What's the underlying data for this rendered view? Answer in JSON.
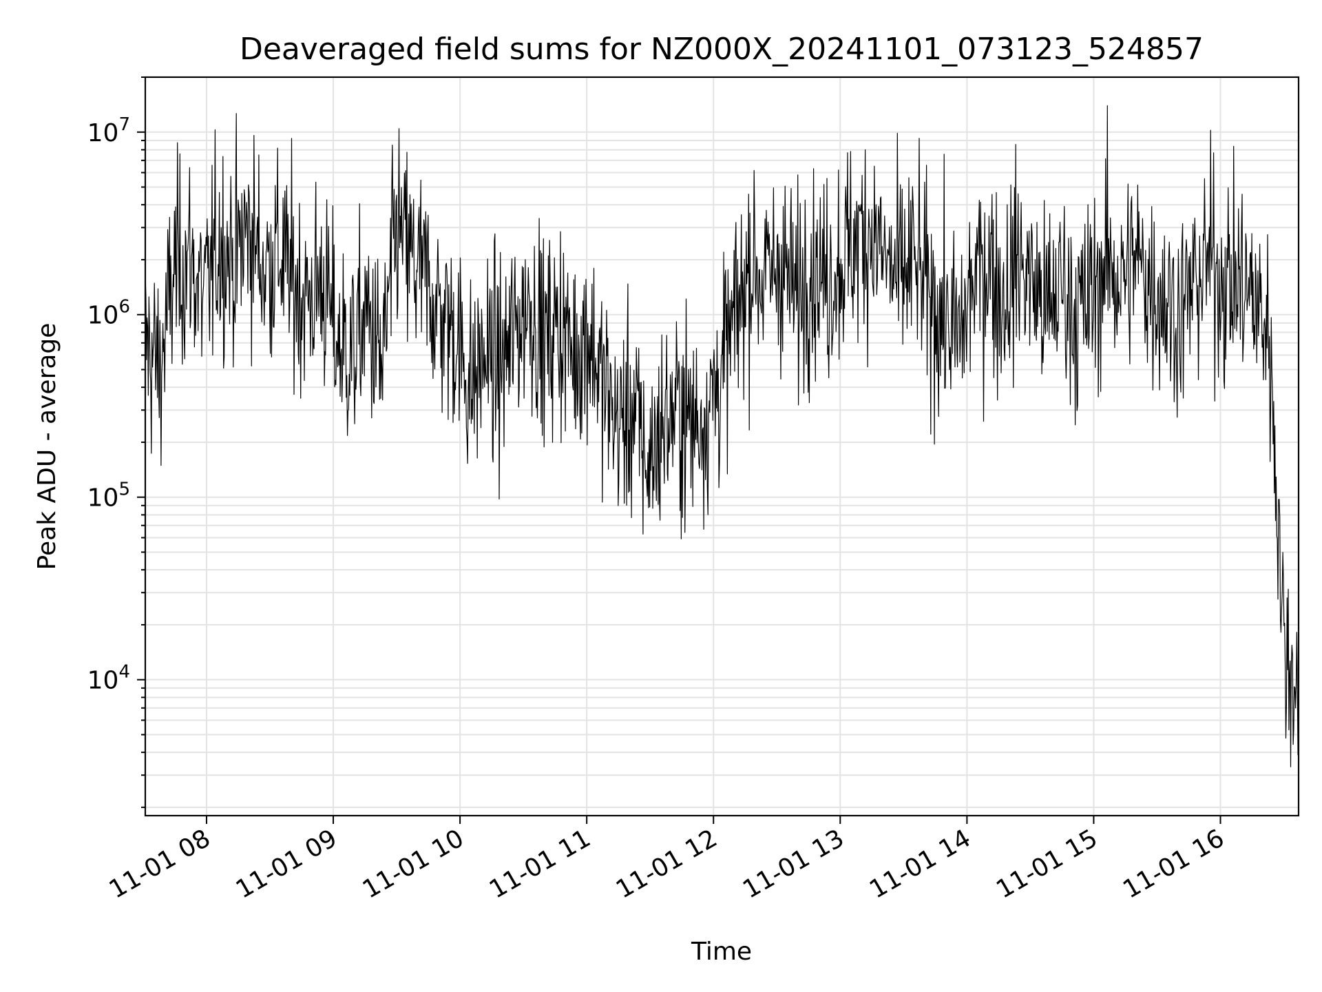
{
  "chart_data": {
    "type": "line",
    "title": "Deaveraged field sums for NZ000X_20241101_073123_524857",
    "xlabel": "Time",
    "ylabel": "Peak ADU - average",
    "yscale": "log",
    "ylim": [
      1800,
      20000000
    ],
    "xlim": [
      "2024-11-01 07:31",
      "2024-11-01 16:37"
    ],
    "grid": true,
    "line_color": "#000000",
    "x_ticks": [
      {
        "value": "2024-11-01 08:00",
        "label": "11-01 08"
      },
      {
        "value": "2024-11-01 09:00",
        "label": "11-01 09"
      },
      {
        "value": "2024-11-01 10:00",
        "label": "11-01 10"
      },
      {
        "value": "2024-11-01 11:00",
        "label": "11-01 11"
      },
      {
        "value": "2024-11-01 12:00",
        "label": "11-01 12"
      },
      {
        "value": "2024-11-01 13:00",
        "label": "11-01 13"
      },
      {
        "value": "2024-11-01 14:00",
        "label": "11-01 14"
      },
      {
        "value": "2024-11-01 15:00",
        "label": "11-01 15"
      },
      {
        "value": "2024-11-01 16:00",
        "label": "11-01 16"
      }
    ],
    "y_ticks": [
      {
        "value": 10000,
        "base": "10",
        "exp": "4"
      },
      {
        "value": 100000,
        "base": "10",
        "exp": "5"
      },
      {
        "value": 1000000,
        "base": "10",
        "exp": "6"
      },
      {
        "value": 10000000,
        "base": "10",
        "exp": "7"
      }
    ],
    "series": [
      {
        "x": [
          "2024-11-01 07:31",
          "2024-11-01 07:38",
          "2024-11-01 07:45",
          "2024-11-01 07:52",
          "2024-11-01 07:59",
          "2024-11-01 08:06",
          "2024-11-01 08:13",
          "2024-11-01 08:20",
          "2024-11-01 08:27",
          "2024-11-01 08:34",
          "2024-11-01 08:41",
          "2024-11-01 08:48",
          "2024-11-01 08:55",
          "2024-11-01 09:02",
          "2024-11-01 09:09",
          "2024-11-01 09:16",
          "2024-11-01 09:23",
          "2024-11-01 09:30",
          "2024-11-01 09:37",
          "2024-11-01 09:44",
          "2024-11-01 09:51",
          "2024-11-01 09:58",
          "2024-11-01 10:05",
          "2024-11-01 10:12",
          "2024-11-01 10:19",
          "2024-11-01 10:26",
          "2024-11-01 10:33",
          "2024-11-01 10:40",
          "2024-11-01 10:47",
          "2024-11-01 10:54",
          "2024-11-01 11:01",
          "2024-11-01 11:08",
          "2024-11-01 11:15",
          "2024-11-01 11:22",
          "2024-11-01 11:29",
          "2024-11-01 11:36",
          "2024-11-01 11:43",
          "2024-11-01 11:50",
          "2024-11-01 11:57",
          "2024-11-01 12:04",
          "2024-11-01 12:11",
          "2024-11-01 12:18",
          "2024-11-01 12:25",
          "2024-11-01 12:32",
          "2024-11-01 12:39",
          "2024-11-01 12:46",
          "2024-11-01 12:53",
          "2024-11-01 13:00",
          "2024-11-01 13:07",
          "2024-11-01 13:14",
          "2024-11-01 13:21",
          "2024-11-01 13:28",
          "2024-11-01 13:35",
          "2024-11-01 13:42",
          "2024-11-01 13:49",
          "2024-11-01 13:56",
          "2024-11-01 14:03",
          "2024-11-01 14:10",
          "2024-11-01 14:17",
          "2024-11-01 14:24",
          "2024-11-01 14:31",
          "2024-11-01 14:38",
          "2024-11-01 14:45",
          "2024-11-01 14:52",
          "2024-11-01 14:59",
          "2024-11-01 15:06",
          "2024-11-01 15:13",
          "2024-11-01 15:20",
          "2024-11-01 15:27",
          "2024-11-01 15:34",
          "2024-11-01 15:41",
          "2024-11-01 15:48",
          "2024-11-01 15:55",
          "2024-11-01 16:02",
          "2024-11-01 16:09",
          "2024-11-01 16:16",
          "2024-11-01 16:23",
          "2024-11-01 16:27",
          "2024-11-01 16:30",
          "2024-11-01 16:33",
          "2024-11-01 16:36"
        ],
        "y": [
          700000,
          500000,
          1800000,
          2000000,
          1200000,
          2500000,
          2000000,
          3000000,
          1800000,
          2200000,
          1500000,
          1200000,
          1500000,
          700000,
          600000,
          1000000,
          500000,
          3000000,
          2000000,
          1500000,
          1000000,
          800000,
          400000,
          600000,
          500000,
          800000,
          1200000,
          700000,
          900000,
          600000,
          800000,
          400000,
          250000,
          300000,
          150000,
          250000,
          300000,
          250000,
          300000,
          500000,
          1000000,
          2000000,
          1500000,
          2000000,
          1200000,
          2000000,
          1500000,
          2000000,
          2500000,
          3000000,
          2000000,
          1500000,
          2000000,
          1200000,
          1000000,
          700000,
          1500000,
          2000000,
          1200000,
          2000000,
          1500000,
          1000000,
          1500000,
          1000000,
          1200000,
          2000000,
          1500000,
          2000000,
          1500000,
          1200000,
          1000000,
          1500000,
          2000000,
          1500000,
          1500000,
          1200000,
          800000,
          100000,
          15000,
          12000,
          10000
        ]
      }
    ]
  }
}
